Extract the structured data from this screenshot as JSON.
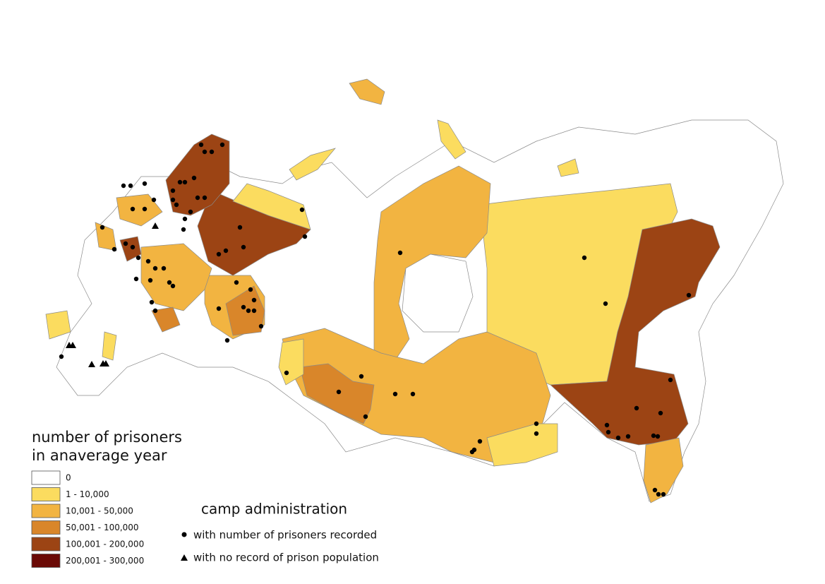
{
  "legend": {
    "title_lines": [
      "number of prisoners",
      "in anaverage year"
    ],
    "classes": [
      {
        "label": "0",
        "color": "#ffffff"
      },
      {
        "label": "1 - 10,000",
        "color": "#fbdc5f"
      },
      {
        "label": "10,001 - 50,000",
        "color": "#f2b441"
      },
      {
        "label": "50,001 - 100,000",
        "color": "#d9862a"
      },
      {
        "label": "100,001 - 200,000",
        "color": "#9c4414"
      },
      {
        "label": "200,001 - 300,000",
        "color": "#6b0a06"
      }
    ]
  },
  "camp_legend": {
    "title": "camp administration",
    "items": [
      "with number of prisoners recorded",
      "with no record of prison population"
    ]
  }
}
